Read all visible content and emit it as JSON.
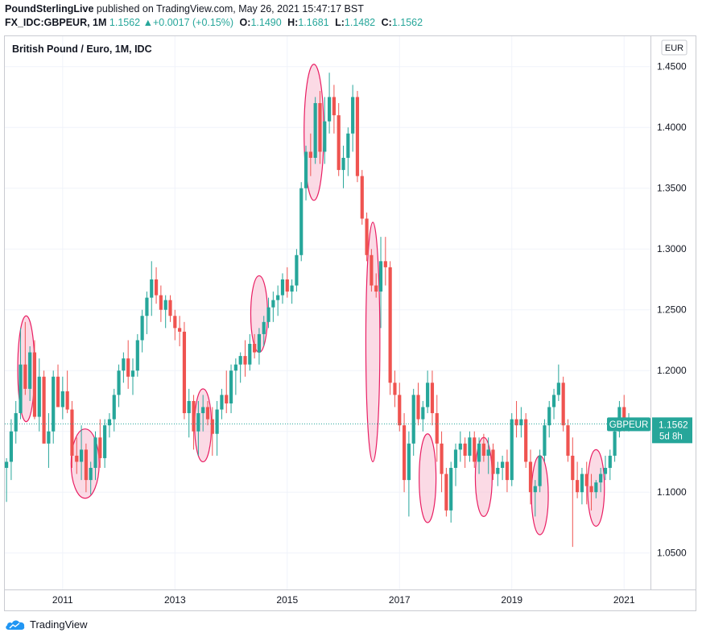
{
  "header": {
    "publisher": "PoundSterlingLive",
    "published_text": "published on TradingView.com, May 26, 2021 15:47:17 BST",
    "symbol": "FX_IDC:GBPEUR, 1M",
    "last": "1.1562",
    "change_arrow": "▲",
    "change": "+0.0017 (+0.15%)",
    "o_label": "O:",
    "o_value": "1.1490",
    "h_label": "H:",
    "h_value": "1.1681",
    "l_label": "L:",
    "l_value": "1.1482",
    "c_label": "C:",
    "c_value": "1.1562"
  },
  "footer": {
    "brand": "TradingView"
  },
  "colors": {
    "up": "#26a69a",
    "down": "#ef5350",
    "ellipse_fill": "#f8bbd0",
    "ellipse_stroke": "#e91e63"
  },
  "chart_data": {
    "type": "candlestick",
    "title": "British Pound / Euro, 1M, IDC",
    "currency": "EUR",
    "ylim": [
      1.02,
      1.475
    ],
    "yticks": [
      "1.4500",
      "1.4000",
      "1.3500",
      "1.3000",
      "1.2500",
      "1.2000",
      "1.1500",
      "1.1000",
      "1.0500"
    ],
    "xticks": [
      {
        "label": "2011",
        "t": 2011.0
      },
      {
        "label": "2013",
        "t": 2013.0
      },
      {
        "label": "2015",
        "t": 2015.0
      },
      {
        "label": "2017",
        "t": 2017.0
      },
      {
        "label": "2019",
        "t": 2019.0
      },
      {
        "label": "2021",
        "t": 2021.0
      }
    ],
    "time_range": [
      2009.97,
      2021.47
    ],
    "current_price": 1.1562,
    "price_label": "GBPEUR",
    "price_value": "1.1562",
    "countdown": "5d 8h",
    "candles": [
      {
        "o": 1.12,
        "h": 1.128,
        "l": 1.092,
        "c": 1.125
      },
      {
        "o": 1.125,
        "h": 1.16,
        "l": 1.11,
        "c": 1.15
      },
      {
        "o": 1.15,
        "h": 1.175,
        "l": 1.14,
        "c": 1.165
      },
      {
        "o": 1.165,
        "h": 1.235,
        "l": 1.16,
        "c": 1.205
      },
      {
        "o": 1.205,
        "h": 1.24,
        "l": 1.18,
        "c": 1.185
      },
      {
        "o": 1.185,
        "h": 1.22,
        "l": 1.175,
        "c": 1.215
      },
      {
        "o": 1.215,
        "h": 1.225,
        "l": 1.16,
        "c": 1.162
      },
      {
        "o": 1.162,
        "h": 1.21,
        "l": 1.15,
        "c": 1.195
      },
      {
        "o": 1.195,
        "h": 1.2,
        "l": 1.14,
        "c": 1.14
      },
      {
        "o": 1.14,
        "h": 1.165,
        "l": 1.12,
        "c": 1.15
      },
      {
        "o": 1.15,
        "h": 1.2,
        "l": 1.14,
        "c": 1.195
      },
      {
        "o": 1.195,
        "h": 1.205,
        "l": 1.17,
        "c": 1.17
      },
      {
        "o": 1.17,
        "h": 1.195,
        "l": 1.16,
        "c": 1.183
      },
      {
        "o": 1.183,
        "h": 1.2,
        "l": 1.165,
        "c": 1.168
      },
      {
        "o": 1.168,
        "h": 1.175,
        "l": 1.12,
        "c": 1.13
      },
      {
        "o": 1.13,
        "h": 1.145,
        "l": 1.115,
        "c": 1.125
      },
      {
        "o": 1.125,
        "h": 1.155,
        "l": 1.11,
        "c": 1.135
      },
      {
        "o": 1.135,
        "h": 1.14,
        "l": 1.1,
        "c": 1.11
      },
      {
        "o": 1.11,
        "h": 1.125,
        "l": 1.098,
        "c": 1.12
      },
      {
        "o": 1.12,
        "h": 1.15,
        "l": 1.11,
        "c": 1.145
      },
      {
        "o": 1.145,
        "h": 1.16,
        "l": 1.12,
        "c": 1.128
      },
      {
        "o": 1.128,
        "h": 1.16,
        "l": 1.12,
        "c": 1.155
      },
      {
        "o": 1.155,
        "h": 1.165,
        "l": 1.145,
        "c": 1.16
      },
      {
        "o": 1.16,
        "h": 1.185,
        "l": 1.15,
        "c": 1.18
      },
      {
        "o": 1.18,
        "h": 1.205,
        "l": 1.17,
        "c": 1.2
      },
      {
        "o": 1.2,
        "h": 1.215,
        "l": 1.19,
        "c": 1.21
      },
      {
        "o": 1.21,
        "h": 1.225,
        "l": 1.185,
        "c": 1.195
      },
      {
        "o": 1.195,
        "h": 1.21,
        "l": 1.18,
        "c": 1.2
      },
      {
        "o": 1.2,
        "h": 1.23,
        "l": 1.195,
        "c": 1.225
      },
      {
        "o": 1.225,
        "h": 1.25,
        "l": 1.215,
        "c": 1.245
      },
      {
        "o": 1.245,
        "h": 1.265,
        "l": 1.23,
        "c": 1.26
      },
      {
        "o": 1.26,
        "h": 1.29,
        "l": 1.245,
        "c": 1.275
      },
      {
        "o": 1.275,
        "h": 1.285,
        "l": 1.255,
        "c": 1.262
      },
      {
        "o": 1.262,
        "h": 1.27,
        "l": 1.24,
        "c": 1.25
      },
      {
        "o": 1.25,
        "h": 1.262,
        "l": 1.235,
        "c": 1.258
      },
      {
        "o": 1.258,
        "h": 1.262,
        "l": 1.24,
        "c": 1.245
      },
      {
        "o": 1.245,
        "h": 1.25,
        "l": 1.225,
        "c": 1.235
      },
      {
        "o": 1.235,
        "h": 1.245,
        "l": 1.22,
        "c": 1.232
      },
      {
        "o": 1.232,
        "h": 1.24,
        "l": 1.16,
        "c": 1.165
      },
      {
        "o": 1.165,
        "h": 1.185,
        "l": 1.145,
        "c": 1.175
      },
      {
        "o": 1.175,
        "h": 1.18,
        "l": 1.135,
        "c": 1.15
      },
      {
        "o": 1.15,
        "h": 1.175,
        "l": 1.13,
        "c": 1.165
      },
      {
        "o": 1.165,
        "h": 1.18,
        "l": 1.15,
        "c": 1.17
      },
      {
        "o": 1.17,
        "h": 1.175,
        "l": 1.155,
        "c": 1.16
      },
      {
        "o": 1.16,
        "h": 1.17,
        "l": 1.13,
        "c": 1.148
      },
      {
        "o": 1.148,
        "h": 1.175,
        "l": 1.13,
        "c": 1.168
      },
      {
        "o": 1.168,
        "h": 1.185,
        "l": 1.16,
        "c": 1.18
      },
      {
        "o": 1.18,
        "h": 1.2,
        "l": 1.165,
        "c": 1.173
      },
      {
        "o": 1.173,
        "h": 1.205,
        "l": 1.165,
        "c": 1.2
      },
      {
        "o": 1.2,
        "h": 1.21,
        "l": 1.18,
        "c": 1.205
      },
      {
        "o": 1.205,
        "h": 1.215,
        "l": 1.19,
        "c": 1.212
      },
      {
        "o": 1.212,
        "h": 1.225,
        "l": 1.195,
        "c": 1.205
      },
      {
        "o": 1.205,
        "h": 1.23,
        "l": 1.2,
        "c": 1.222
      },
      {
        "o": 1.222,
        "h": 1.23,
        "l": 1.21,
        "c": 1.215
      },
      {
        "o": 1.215,
        "h": 1.235,
        "l": 1.205,
        "c": 1.23
      },
      {
        "o": 1.23,
        "h": 1.245,
        "l": 1.22,
        "c": 1.24
      },
      {
        "o": 1.24,
        "h": 1.26,
        "l": 1.235,
        "c": 1.252
      },
      {
        "o": 1.252,
        "h": 1.265,
        "l": 1.24,
        "c": 1.258
      },
      {
        "o": 1.258,
        "h": 1.27,
        "l": 1.245,
        "c": 1.262
      },
      {
        "o": 1.262,
        "h": 1.28,
        "l": 1.255,
        "c": 1.275
      },
      {
        "o": 1.275,
        "h": 1.285,
        "l": 1.26,
        "c": 1.265
      },
      {
        "o": 1.265,
        "h": 1.275,
        "l": 1.255,
        "c": 1.27
      },
      {
        "o": 1.27,
        "h": 1.3,
        "l": 1.265,
        "c": 1.295
      },
      {
        "o": 1.295,
        "h": 1.355,
        "l": 1.29,
        "c": 1.35
      },
      {
        "o": 1.35,
        "h": 1.385,
        "l": 1.34,
        "c": 1.38
      },
      {
        "o": 1.38,
        "h": 1.395,
        "l": 1.36,
        "c": 1.375
      },
      {
        "o": 1.375,
        "h": 1.425,
        "l": 1.37,
        "c": 1.42
      },
      {
        "o": 1.42,
        "h": 1.43,
        "l": 1.37,
        "c": 1.38
      },
      {
        "o": 1.38,
        "h": 1.425,
        "l": 1.37,
        "c": 1.405
      },
      {
        "o": 1.405,
        "h": 1.445,
        "l": 1.395,
        "c": 1.425
      },
      {
        "o": 1.425,
        "h": 1.435,
        "l": 1.395,
        "c": 1.41
      },
      {
        "o": 1.41,
        "h": 1.42,
        "l": 1.36,
        "c": 1.365
      },
      {
        "o": 1.365,
        "h": 1.385,
        "l": 1.35,
        "c": 1.375
      },
      {
        "o": 1.375,
        "h": 1.4,
        "l": 1.36,
        "c": 1.395
      },
      {
        "o": 1.395,
        "h": 1.435,
        "l": 1.38,
        "c": 1.425
      },
      {
        "o": 1.425,
        "h": 1.43,
        "l": 1.355,
        "c": 1.36
      },
      {
        "o": 1.36,
        "h": 1.365,
        "l": 1.32,
        "c": 1.325
      },
      {
        "o": 1.325,
        "h": 1.33,
        "l": 1.29,
        "c": 1.295
      },
      {
        "o": 1.295,
        "h": 1.3,
        "l": 1.265,
        "c": 1.27
      },
      {
        "o": 1.27,
        "h": 1.28,
        "l": 1.26,
        "c": 1.265
      },
      {
        "o": 1.265,
        "h": 1.31,
        "l": 1.235,
        "c": 1.29
      },
      {
        "o": 1.29,
        "h": 1.31,
        "l": 1.27,
        "c": 1.285
      },
      {
        "o": 1.285,
        "h": 1.29,
        "l": 1.18,
        "c": 1.19
      },
      {
        "o": 1.19,
        "h": 1.2,
        "l": 1.17,
        "c": 1.18
      },
      {
        "o": 1.18,
        "h": 1.19,
        "l": 1.15,
        "c": 1.155
      },
      {
        "o": 1.155,
        "h": 1.165,
        "l": 1.1,
        "c": 1.11
      },
      {
        "o": 1.11,
        "h": 1.15,
        "l": 1.08,
        "c": 1.14
      },
      {
        "o": 1.14,
        "h": 1.185,
        "l": 1.13,
        "c": 1.18
      },
      {
        "o": 1.18,
        "h": 1.19,
        "l": 1.155,
        "c": 1.16
      },
      {
        "o": 1.16,
        "h": 1.175,
        "l": 1.15,
        "c": 1.17
      },
      {
        "o": 1.17,
        "h": 1.2,
        "l": 1.165,
        "c": 1.19
      },
      {
        "o": 1.19,
        "h": 1.2,
        "l": 1.155,
        "c": 1.165
      },
      {
        "o": 1.165,
        "h": 1.18,
        "l": 1.125,
        "c": 1.14
      },
      {
        "o": 1.14,
        "h": 1.15,
        "l": 1.1,
        "c": 1.115
      },
      {
        "o": 1.115,
        "h": 1.12,
        "l": 1.08,
        "c": 1.085
      },
      {
        "o": 1.085,
        "h": 1.125,
        "l": 1.075,
        "c": 1.12
      },
      {
        "o": 1.12,
        "h": 1.14,
        "l": 1.105,
        "c": 1.135
      },
      {
        "o": 1.135,
        "h": 1.15,
        "l": 1.125,
        "c": 1.14
      },
      {
        "o": 1.14,
        "h": 1.145,
        "l": 1.12,
        "c": 1.13
      },
      {
        "o": 1.13,
        "h": 1.15,
        "l": 1.125,
        "c": 1.145
      },
      {
        "o": 1.145,
        "h": 1.15,
        "l": 1.12,
        "c": 1.125
      },
      {
        "o": 1.125,
        "h": 1.145,
        "l": 1.115,
        "c": 1.14
      },
      {
        "o": 1.14,
        "h": 1.148,
        "l": 1.125,
        "c": 1.13
      },
      {
        "o": 1.13,
        "h": 1.145,
        "l": 1.115,
        "c": 1.135
      },
      {
        "o": 1.135,
        "h": 1.14,
        "l": 1.11,
        "c": 1.115
      },
      {
        "o": 1.115,
        "h": 1.125,
        "l": 1.105,
        "c": 1.12
      },
      {
        "o": 1.12,
        "h": 1.13,
        "l": 1.11,
        "c": 1.125
      },
      {
        "o": 1.125,
        "h": 1.135,
        "l": 1.1,
        "c": 1.11
      },
      {
        "o": 1.11,
        "h": 1.165,
        "l": 1.105,
        "c": 1.16
      },
      {
        "o": 1.16,
        "h": 1.175,
        "l": 1.145,
        "c": 1.155
      },
      {
        "o": 1.155,
        "h": 1.17,
        "l": 1.145,
        "c": 1.16
      },
      {
        "o": 1.16,
        "h": 1.165,
        "l": 1.12,
        "c": 1.125
      },
      {
        "o": 1.125,
        "h": 1.135,
        "l": 1.09,
        "c": 1.1
      },
      {
        "o": 1.1,
        "h": 1.11,
        "l": 1.08,
        "c": 1.105
      },
      {
        "o": 1.105,
        "h": 1.135,
        "l": 1.1,
        "c": 1.13
      },
      {
        "o": 1.13,
        "h": 1.16,
        "l": 1.125,
        "c": 1.155
      },
      {
        "o": 1.155,
        "h": 1.175,
        "l": 1.145,
        "c": 1.17
      },
      {
        "o": 1.17,
        "h": 1.185,
        "l": 1.16,
        "c": 1.18
      },
      {
        "o": 1.18,
        "h": 1.205,
        "l": 1.175,
        "c": 1.19
      },
      {
        "o": 1.19,
        "h": 1.195,
        "l": 1.15,
        "c": 1.155
      },
      {
        "o": 1.155,
        "h": 1.16,
        "l": 1.125,
        "c": 1.13
      },
      {
        "o": 1.13,
        "h": 1.145,
        "l": 1.055,
        "c": 1.11
      },
      {
        "o": 1.11,
        "h": 1.125,
        "l": 1.095,
        "c": 1.1
      },
      {
        "o": 1.1,
        "h": 1.12,
        "l": 1.09,
        "c": 1.115
      },
      {
        "o": 1.115,
        "h": 1.125,
        "l": 1.09,
        "c": 1.105
      },
      {
        "o": 1.105,
        "h": 1.115,
        "l": 1.085,
        "c": 1.1
      },
      {
        "o": 1.1,
        "h": 1.11,
        "l": 1.095,
        "c": 1.108
      },
      {
        "o": 1.108,
        "h": 1.12,
        "l": 1.1,
        "c": 1.115
      },
      {
        "o": 1.115,
        "h": 1.13,
        "l": 1.11,
        "c": 1.12
      },
      {
        "o": 1.12,
        "h": 1.135,
        "l": 1.11,
        "c": 1.13
      },
      {
        "o": 1.13,
        "h": 1.155,
        "l": 1.125,
        "c": 1.15
      },
      {
        "o": 1.15,
        "h": 1.175,
        "l": 1.145,
        "c": 1.17
      },
      {
        "o": 1.17,
        "h": 1.18,
        "l": 1.15,
        "c": 1.155
      },
      {
        "o": 1.155,
        "h": 1.165,
        "l": 1.15,
        "c": 1.156
      }
    ],
    "highlights": [
      {
        "t1": 2010.2,
        "t2": 2010.5,
        "p_top": 1.245,
        "p_bot": 1.158
      },
      {
        "t1": 2011.15,
        "t2": 2011.65,
        "p_top": 1.152,
        "p_bot": 1.095
      },
      {
        "t1": 2013.35,
        "t2": 2013.65,
        "p_top": 1.185,
        "p_bot": 1.125
      },
      {
        "t1": 2014.35,
        "t2": 2014.65,
        "p_top": 1.278,
        "p_bot": 1.215
      },
      {
        "t1": 2015.3,
        "t2": 2015.65,
        "p_top": 1.452,
        "p_bot": 1.34
      },
      {
        "t1": 2016.4,
        "t2": 2016.65,
        "p_top": 1.322,
        "p_bot": 1.125
      },
      {
        "t1": 2017.35,
        "t2": 2017.65,
        "p_top": 1.148,
        "p_bot": 1.075
      },
      {
        "t1": 2018.35,
        "t2": 2018.65,
        "p_top": 1.145,
        "p_bot": 1.08
      },
      {
        "t1": 2019.35,
        "t2": 2019.65,
        "p_top": 1.13,
        "p_bot": 1.065
      },
      {
        "t1": 2020.35,
        "t2": 2020.65,
        "p_top": 1.135,
        "p_bot": 1.072
      }
    ]
  }
}
